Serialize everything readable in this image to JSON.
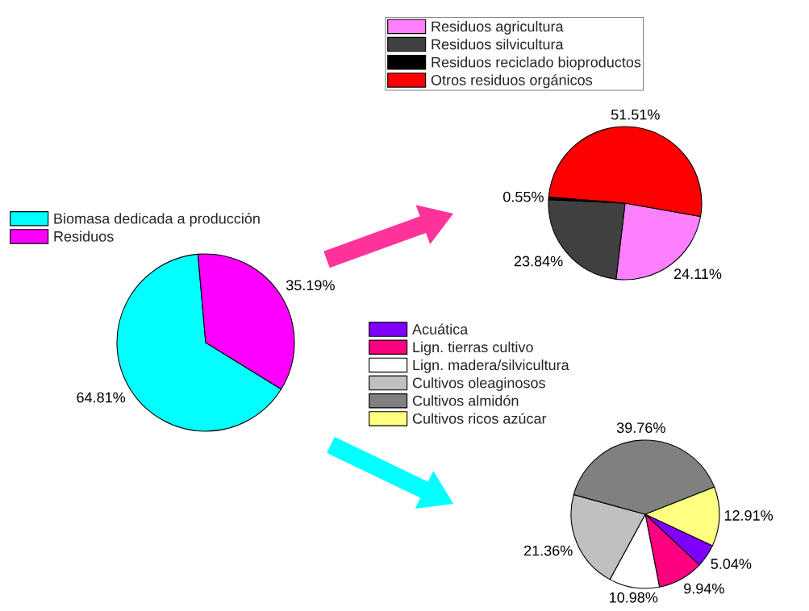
{
  "chart_data": [
    {
      "type": "pie",
      "categories": [
        "Biomasa dedicada a producción",
        "Residuos"
      ],
      "values": [
        64.81,
        35.19
      ],
      "colors": [
        "#00ffff",
        "#ff00ff"
      ],
      "value_labels": [
        "64.81%",
        "35.19%"
      ],
      "legend": "top left"
    },
    {
      "type": "pie",
      "categories": [
        "Residuos agricultura",
        "Residuos silvicultura",
        "Residuos reciclado bioproductos",
        "Otros residuos orgánicos"
      ],
      "values": [
        24.11,
        23.84,
        0.55,
        51.51
      ],
      "colors": [
        "#ff80ff",
        "#404040",
        "#000000",
        "#ff0000"
      ],
      "value_labels": [
        "24.11%",
        "23.84%",
        "0.55%",
        "51.51%"
      ],
      "legend": "top"
    },
    {
      "type": "pie",
      "categories": [
        "Acuática",
        "Lign. tierras cultivo",
        "Lign. madera/silvicultura",
        "Cultivos oleaginosos",
        "Cultivos almidón",
        "Cultivos ricos azúcar"
      ],
      "values": [
        5.04,
        9.94,
        10.98,
        21.36,
        39.76,
        12.91
      ],
      "colors": [
        "#8000ff",
        "#ff0080",
        "#ffffff",
        "#c0c0c0",
        "#808080",
        "#ffff80"
      ],
      "value_labels": [
        "5.04%",
        "9.94%",
        "10.98%",
        "21.36%",
        "39.76%",
        "12.91%"
      ],
      "legend": "top left"
    }
  ]
}
